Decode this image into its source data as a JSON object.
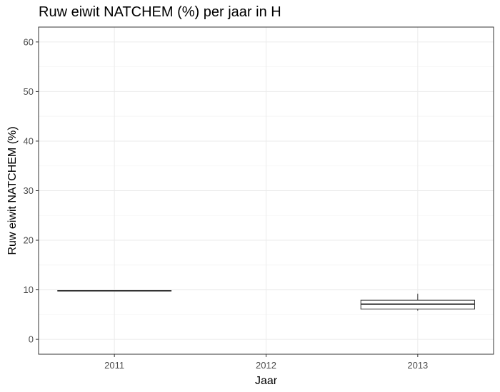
{
  "chart_data": {
    "type": "boxplot",
    "title": "Ruw eiwit NATCHEM (%) per jaar in H",
    "xlabel": "Jaar",
    "ylabel": "Ruw eiwit NATCHEM (%)",
    "categories": [
      "2011",
      "2012",
      "2013"
    ],
    "ylim": [
      -3,
      63
    ],
    "yticks": [
      0,
      10,
      20,
      30,
      40,
      50,
      60
    ],
    "grid": true,
    "boxes": [
      {
        "category": "2011",
        "min": 9.8,
        "q1": 9.8,
        "median": 9.8,
        "q3": 9.8,
        "max": 9.8
      },
      {
        "category": "2013",
        "min": 5.8,
        "q1": 6.1,
        "median": 7.1,
        "q3": 7.9,
        "max": 9.2
      }
    ],
    "colors": {
      "panel_border": "#333333",
      "grid_major": "#ebebeb",
      "grid_minor": "#f5f5f5",
      "box_line": "#333333"
    }
  }
}
